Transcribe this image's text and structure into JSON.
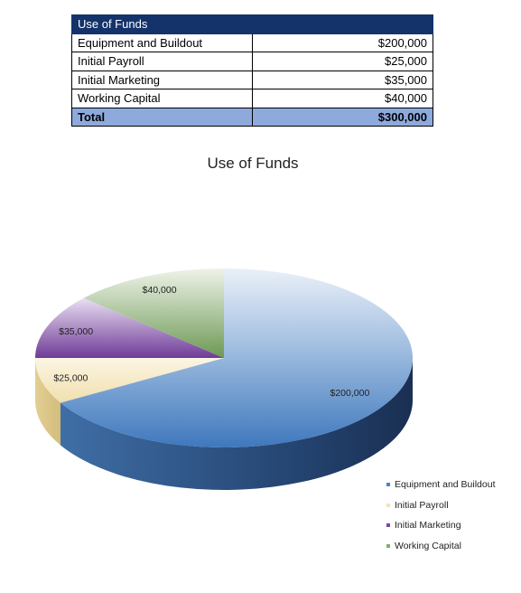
{
  "table": {
    "header": "Use of Funds",
    "rows": [
      {
        "label": "Equipment and Buildout",
        "amount": "$200,000"
      },
      {
        "label": "Initial Payroll",
        "amount": "$25,000"
      },
      {
        "label": "Initial Marketing",
        "amount": "$35,000"
      },
      {
        "label": "Working Capital",
        "amount": "$40,000"
      }
    ],
    "total": {
      "label": "Total",
      "amount": "$300,000"
    }
  },
  "chart_data": {
    "type": "pie",
    "title": "Use of Funds",
    "style": "3d",
    "categories": [
      "Equipment and Buildout",
      "Initial Payroll",
      "Initial Marketing",
      "Working Capital"
    ],
    "values": [
      200000,
      25000,
      35000,
      40000
    ],
    "data_labels": [
      "$200,000",
      "$25,000",
      "$35,000",
      "$40,000"
    ],
    "colors": [
      "#4a84c6",
      "#f3e3b6",
      "#7a4a9e",
      "#86ad6c"
    ],
    "legend": "bottom-right"
  }
}
